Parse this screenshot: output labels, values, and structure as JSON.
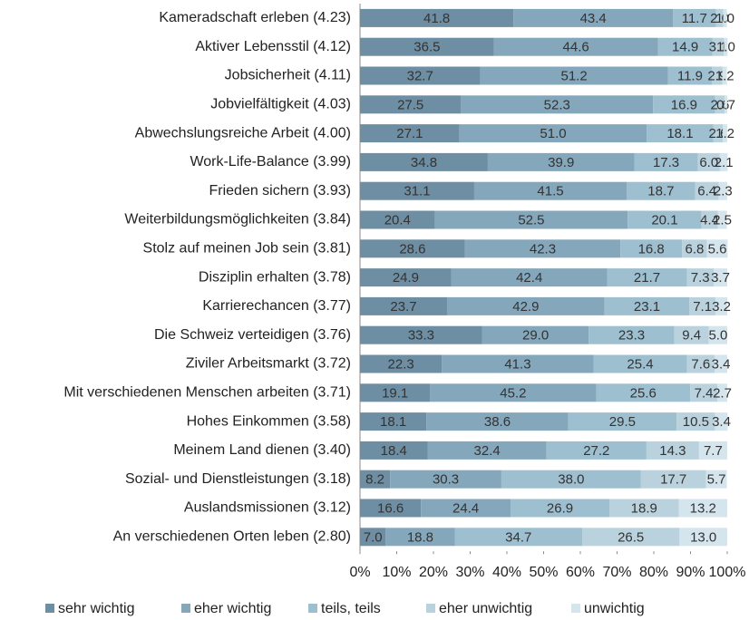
{
  "chart_data": {
    "type": "stacked_barh",
    "categories": [
      "Kameradschaft erleben (4.23)",
      "Aktiver Lebensstil (4.12)",
      "Jobsicherheit (4.11)",
      "Jobvielfältigkeit (4.03)",
      "Abwechslungsreiche Arbeit (4.00)",
      "Work-Life-Balance (3.99)",
      "Frieden sichern (3.93)",
      "Weiterbildungsmöglichkeiten (3.84)",
      "Stolz auf meinen Job sein (3.81)",
      "Disziplin erhalten (3.78)",
      "Karrierechancen (3.77)",
      "Die Schweiz verteidigen (3.76)",
      "Ziviler Arbeitsmarkt (3.72)",
      "Mit verschiedenen Menschen arbeiten (3.71)",
      "Hohes Einkommen (3.58)",
      "Meinem Land dienen (3.40)",
      "Sozial- und Dienstleistungen (3.18)",
      "Auslandsmissionen (3.12)",
      "An verschiedenen Orten leben (2.80)"
    ],
    "series": [
      {
        "name": "sehr wichtig",
        "color": "#6e8ea3",
        "values": [
          41.8,
          36.5,
          32.7,
          27.5,
          27.1,
          34.8,
          31.1,
          20.4,
          28.6,
          24.9,
          23.7,
          33.3,
          22.3,
          19.1,
          18.1,
          18.4,
          8.2,
          16.6,
          7.0
        ],
        "value_labels": [
          "41.8",
          "36.5",
          "32.7",
          "27.5",
          "27.1",
          "34.8",
          "31.1",
          "20.4",
          "28.6",
          "24.9",
          "23.7",
          "33.3",
          "22.3",
          "19.1",
          "18.1",
          "18.4",
          "8.2",
          "16.6",
          "7.0"
        ]
      },
      {
        "name": "eher wichtig",
        "color": "#85a7bb",
        "values": [
          43.4,
          44.6,
          51.2,
          52.3,
          51.0,
          39.9,
          41.5,
          52.5,
          42.3,
          42.4,
          42.9,
          29.0,
          41.3,
          45.2,
          38.6,
          32.4,
          30.3,
          24.4,
          18.8
        ],
        "value_labels": [
          "43.4",
          "44.6",
          "51.2",
          "52.3",
          "51.0",
          "39.9",
          "41.5",
          "52.5",
          "42.3",
          "42.4",
          "42.9",
          "29.0",
          "41.3",
          "45.2",
          "38.6",
          "32.4",
          "30.3",
          "24.4",
          "18.8"
        ]
      },
      {
        "name": "teils, teils",
        "color": "#9dbfd0",
        "values": [
          11.7,
          14.9,
          11.9,
          16.9,
          18.1,
          17.3,
          18.7,
          20.1,
          16.8,
          21.7,
          23.1,
          23.3,
          25.4,
          25.6,
          29.5,
          27.2,
          38.0,
          26.9,
          34.7
        ],
        "value_labels": [
          "11.7",
          "14.9",
          "11.9",
          "16.9",
          "18.1",
          "17.3",
          "18.7",
          "20.1",
          "16.8",
          "21.7",
          "23.1",
          "23.3",
          "25.4",
          "25.6",
          "29.5",
          "27.2",
          "38.0",
          "26.9",
          "34.7"
        ]
      },
      {
        "name": "eher unwichtig",
        "color": "#b9d2de",
        "values": [
          2.0,
          3.1,
          2.9,
          2.6,
          2.6,
          6.0,
          6.4,
          4.4,
          6.8,
          7.3,
          7.1,
          9.4,
          7.6,
          7.4,
          10.5,
          14.3,
          17.7,
          18.9,
          26.5
        ],
        "value_labels": [
          "2.0",
          "3.1",
          "2.9",
          "2.6",
          "2.6",
          "6.0",
          "6.4",
          "4.4",
          "6.8",
          "7.3",
          "7.1",
          "9.4",
          "7.6",
          "7.4",
          "10.5",
          "14.3",
          "17.7",
          "18.9",
          "26.5"
        ]
      },
      {
        "name": "unwichtig",
        "color": "#d4e5ed",
        "values": [
          1.0,
          1.0,
          1.2,
          0.7,
          1.2,
          2.1,
          2.3,
          2.5,
          5.6,
          3.7,
          3.2,
          5.0,
          3.4,
          2.7,
          3.4,
          7.7,
          5.7,
          13.2,
          13.0
        ],
        "value_labels": [
          "1.0",
          "1.0",
          "1.2",
          "0.7",
          "1.2",
          "2.1",
          "2.3",
          "2.5",
          "5.6",
          "3.7",
          "3.2",
          "5.0",
          "3.4",
          "2.7",
          "3.4",
          "7.7",
          "5.7",
          "13.2",
          "13.0"
        ]
      }
    ],
    "xlim": [
      0,
      100
    ],
    "xticks": [
      {
        "value": 0,
        "label": "0%"
      },
      {
        "value": 10,
        "label": "10%"
      },
      {
        "value": 20,
        "label": "20%"
      },
      {
        "value": 30,
        "label": "30%"
      },
      {
        "value": 40,
        "label": "40%"
      },
      {
        "value": 50,
        "label": "50%"
      },
      {
        "value": 60,
        "label": "60%"
      },
      {
        "value": 70,
        "label": "70%"
      },
      {
        "value": 80,
        "label": "80%"
      },
      {
        "value": 90,
        "label": "90%"
      },
      {
        "value": 100,
        "label": "100%"
      }
    ],
    "legend": "bottom"
  }
}
